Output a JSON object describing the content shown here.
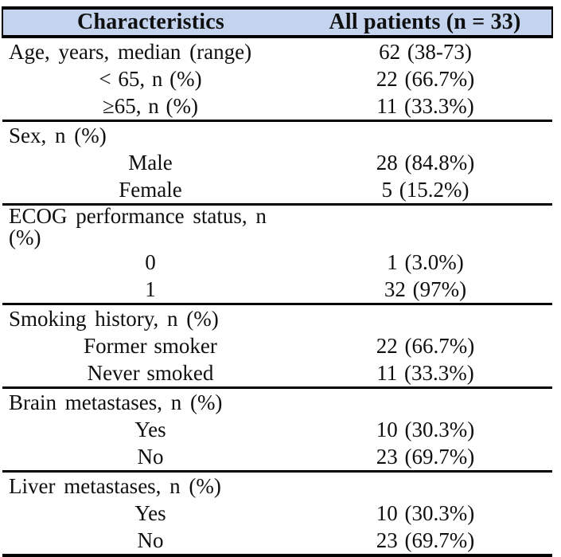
{
  "table": {
    "header": {
      "characteristics": "Characteristics",
      "all_patients": "All patients (n = 33)"
    },
    "colors": {
      "header_bg": "#c5d4ee",
      "border": "#000000",
      "text": "#0f0f0f"
    },
    "rows": [
      {
        "type": "section",
        "label": "Age, years, median (range)",
        "value": "62 (38-73)"
      },
      {
        "type": "sub",
        "label": "< 65, n (%)",
        "value": "22 (66.7%)"
      },
      {
        "type": "sub",
        "label": "≥65, n (%)",
        "value": "11 (33.3%)"
      },
      {
        "type": "section",
        "label": "Sex, n (%)",
        "value": ""
      },
      {
        "type": "sub",
        "label": "Male",
        "value": "28 (84.8%)"
      },
      {
        "type": "sub",
        "label": "Female",
        "value": "5 (15.2%)"
      },
      {
        "type": "section",
        "label": "ECOG performance status, n (%)",
        "value": ""
      },
      {
        "type": "sub",
        "label": "0",
        "value": "1 (3.0%)"
      },
      {
        "type": "sub",
        "label": "1",
        "value": "32 (97%)"
      },
      {
        "type": "section",
        "label": "Smoking history, n (%)",
        "value": ""
      },
      {
        "type": "sub",
        "label": "Former smoker",
        "value": "22 (66.7%)"
      },
      {
        "type": "sub",
        "label": "Never smoked",
        "value": "11 (33.3%)"
      },
      {
        "type": "section",
        "label": "Brain metastases, n (%)",
        "value": ""
      },
      {
        "type": "sub",
        "label": "Yes",
        "value": "10 (30.3%)"
      },
      {
        "type": "sub",
        "label": "No",
        "value": "23 (69.7%)"
      },
      {
        "type": "section",
        "label": "Liver metastases, n (%)",
        "value": ""
      },
      {
        "type": "sub",
        "label": "Yes",
        "value": "10 (30.3%)"
      },
      {
        "type": "sub",
        "label": "No",
        "value": "23 (69.7%)"
      }
    ]
  }
}
